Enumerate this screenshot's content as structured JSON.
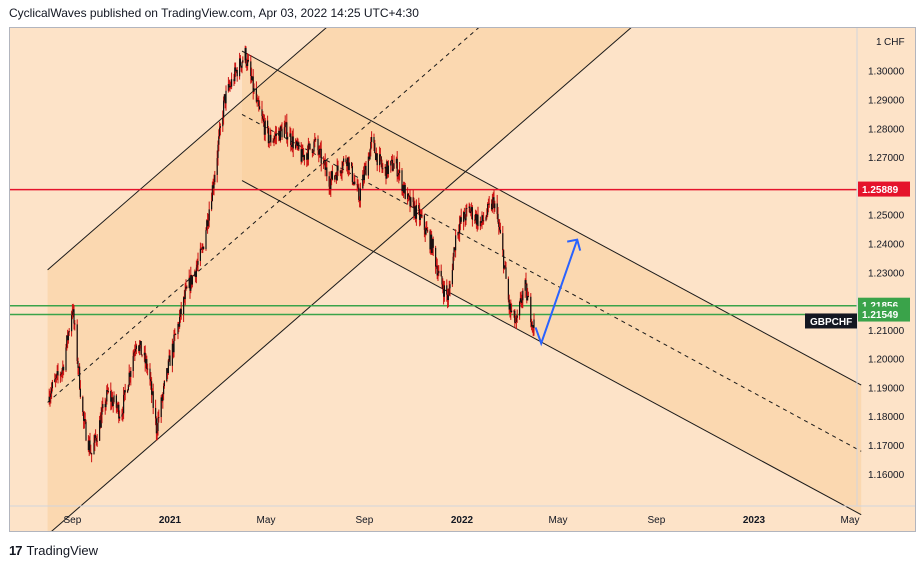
{
  "header": {
    "text": "CyclicalWaves published on TradingView.com, Apr 03, 2022 14:25 UTC+4:30"
  },
  "footer": {
    "brand": "TradingView"
  },
  "colors": {
    "background": "#fde3c8",
    "channel_fill": "#f9cf9c",
    "red_level": "#e5132b",
    "green_level": "#3aa34a",
    "arrow": "#2962ff",
    "candle": "#101010",
    "wick": "#cc1111"
  },
  "chart_data": {
    "type": "candlestick",
    "symbol": "GBPCHF",
    "currency": "CHF",
    "x_ticks": [
      "Sep",
      "2021",
      "May",
      "Sep",
      "2022",
      "May",
      "Sep",
      "2023",
      "May"
    ],
    "y_ticks": [
      "1.16000",
      "1.17000",
      "1.18000",
      "1.19000",
      "1.20000",
      "1.21000",
      "1.22000",
      "1.23000",
      "1.24000",
      "1.25000",
      "1.26000",
      "1.27000",
      "1.28000",
      "1.29000",
      "1.30000"
    ],
    "y_unit_label": "1",
    "y_range": [
      1.149,
      1.315
    ],
    "levels": [
      {
        "name": "resistance",
        "value": 1.25889,
        "label": "1.25889",
        "color": "#e5132b"
      },
      {
        "name": "support-upper",
        "value": 1.21856,
        "label": "1.21856",
        "color": "#3aa34a"
      },
      {
        "name": "support-lower",
        "value": 1.21549,
        "label": "1.21549",
        "color": "#3aa34a"
      }
    ],
    "last_price_label": "GBPCHF",
    "price_path": [
      [
        "2020-08-01",
        1.187
      ],
      [
        "2020-08-20",
        1.197
      ],
      [
        "2020-09-01",
        1.218
      ],
      [
        "2020-09-15",
        1.178
      ],
      [
        "2020-09-25",
        1.167
      ],
      [
        "2020-10-15",
        1.188
      ],
      [
        "2020-11-01",
        1.181
      ],
      [
        "2020-11-20",
        1.207
      ],
      [
        "2020-12-05",
        1.196
      ],
      [
        "2020-12-15",
        1.176
      ],
      [
        "2021-01-01",
        1.2
      ],
      [
        "2021-01-20",
        1.222
      ],
      [
        "2021-02-10",
        1.237
      ],
      [
        "2021-02-25",
        1.263
      ],
      [
        "2021-03-10",
        1.29
      ],
      [
        "2021-03-25",
        1.3
      ],
      [
        "2021-04-05",
        1.306
      ],
      [
        "2021-04-20",
        1.288
      ],
      [
        "2021-05-05",
        1.276
      ],
      [
        "2021-05-25",
        1.28
      ],
      [
        "2021-06-15",
        1.27
      ],
      [
        "2021-07-01",
        1.275
      ],
      [
        "2021-07-20",
        1.262
      ],
      [
        "2021-08-10",
        1.27
      ],
      [
        "2021-08-25",
        1.256
      ],
      [
        "2021-09-10",
        1.275
      ],
      [
        "2021-09-25",
        1.265
      ],
      [
        "2021-10-10",
        1.268
      ],
      [
        "2021-10-25",
        1.255
      ],
      [
        "2021-11-10",
        1.249
      ],
      [
        "2021-11-25",
        1.239
      ],
      [
        "2021-12-05",
        1.227
      ],
      [
        "2021-12-15",
        1.221
      ],
      [
        "2021-12-25",
        1.245
      ],
      [
        "2022-01-10",
        1.252
      ],
      [
        "2022-01-25",
        1.247
      ],
      [
        "2022-02-10",
        1.255
      ],
      [
        "2022-02-20",
        1.239
      ],
      [
        "2022-03-01",
        1.218
      ],
      [
        "2022-03-10",
        1.212
      ],
      [
        "2022-03-20",
        1.226
      ],
      [
        "2022-03-30",
        1.213
      ],
      [
        "2022-04-03",
        1.211
      ]
    ],
    "projection": {
      "from": [
        "2022-04-10",
        1.2055
      ],
      "to": [
        "2022-05-25",
        1.2415
      ]
    },
    "channels": [
      {
        "name": "ascending-channel",
        "upper": [
          [
            "2020-08-01",
            1.231
          ],
          [
            "2022-10-01",
            1.422
          ]
        ],
        "mid": [
          [
            "2020-08-01",
            1.185
          ],
          [
            "2022-10-01",
            1.376
          ]
        ],
        "lower": [
          [
            "2020-08-01",
            1.139
          ],
          [
            "2022-10-01",
            1.33
          ]
        ]
      },
      {
        "name": "descending-channel",
        "upper": [
          [
            "2021-04-01",
            1.307
          ],
          [
            "2023-05-15",
            1.191
          ]
        ],
        "mid": [
          [
            "2021-04-01",
            1.285
          ],
          [
            "2023-05-15",
            1.168
          ]
        ],
        "lower": [
          [
            "2021-04-01",
            1.262
          ],
          [
            "2023-05-15",
            1.146
          ]
        ]
      }
    ]
  }
}
